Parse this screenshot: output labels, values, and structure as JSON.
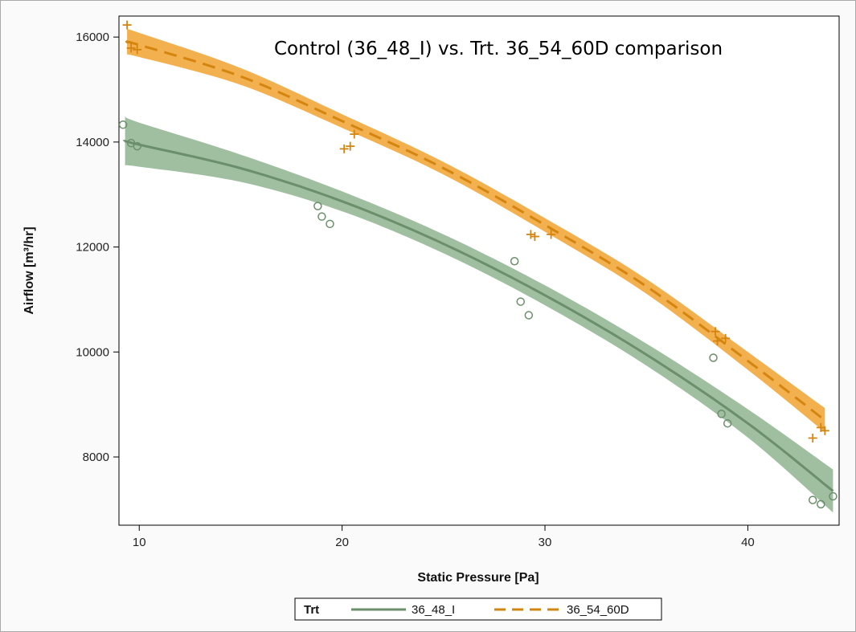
{
  "chart_data": {
    "type": "scatter",
    "title": "Control (36_48_I) vs. Trt. 36_54_60D comparison",
    "xlabel": "Static Pressure [Pa]",
    "ylabel": "Airflow [m³/hr]",
    "xlim": [
      9,
      44.5
    ],
    "ylim": [
      6700,
      16400
    ],
    "xticks": [
      10,
      20,
      30,
      40
    ],
    "yticks": [
      8000,
      10000,
      12000,
      14000,
      16000
    ],
    "legend": {
      "title": "Trt",
      "placement": "bottom-center"
    },
    "series": [
      {
        "name": "36_48_I",
        "color": "#6b8e6b",
        "band_color": "#8fb38f",
        "line_style": "solid",
        "marker": "circle",
        "fit_x": [
          9.3,
          10,
          15,
          20,
          25,
          30,
          35,
          40,
          44.2
        ],
        "fit_y": [
          14020,
          13950,
          13500,
          12870,
          12060,
          11080,
          9950,
          8640,
          7350
        ],
        "band_halfwidth": [
          470,
          420,
          260,
          190,
          180,
          190,
          210,
          270,
          410
        ],
        "points": [
          [
            9.2,
            14330
          ],
          [
            9.6,
            13980
          ],
          [
            9.9,
            13920
          ],
          [
            18.8,
            12780
          ],
          [
            19.0,
            12580
          ],
          [
            19.4,
            12440
          ],
          [
            28.5,
            11730
          ],
          [
            28.8,
            10960
          ],
          [
            29.2,
            10700
          ],
          [
            38.3,
            9890
          ],
          [
            38.7,
            8820
          ],
          [
            39.0,
            8640
          ],
          [
            43.2,
            7180
          ],
          [
            43.6,
            7100
          ],
          [
            44.2,
            7250
          ]
        ]
      },
      {
        "name": "36_54_60D",
        "color": "#d4850f",
        "band_color": "#f2a73b",
        "line_style": "dashed",
        "marker": "plus",
        "fit_x": [
          9.4,
          10,
          15,
          20,
          25,
          30,
          35,
          40,
          43.8
        ],
        "fit_y": [
          15900,
          15850,
          15250,
          14400,
          13500,
          12420,
          11250,
          9830,
          8700
        ],
        "band_halfwidth": [
          250,
          230,
          160,
          130,
          120,
          130,
          140,
          170,
          230
        ],
        "points": [
          [
            9.4,
            16230
          ],
          [
            9.6,
            15790
          ],
          [
            9.9,
            15760
          ],
          [
            20.1,
            13870
          ],
          [
            20.4,
            13920
          ],
          [
            20.6,
            14150
          ],
          [
            29.3,
            12240
          ],
          [
            29.5,
            12200
          ],
          [
            30.3,
            12240
          ],
          [
            38.4,
            10390
          ],
          [
            38.5,
            10210
          ],
          [
            38.9,
            10260
          ],
          [
            43.2,
            8360
          ],
          [
            43.6,
            8560
          ],
          [
            43.8,
            8500
          ]
        ]
      }
    ]
  }
}
